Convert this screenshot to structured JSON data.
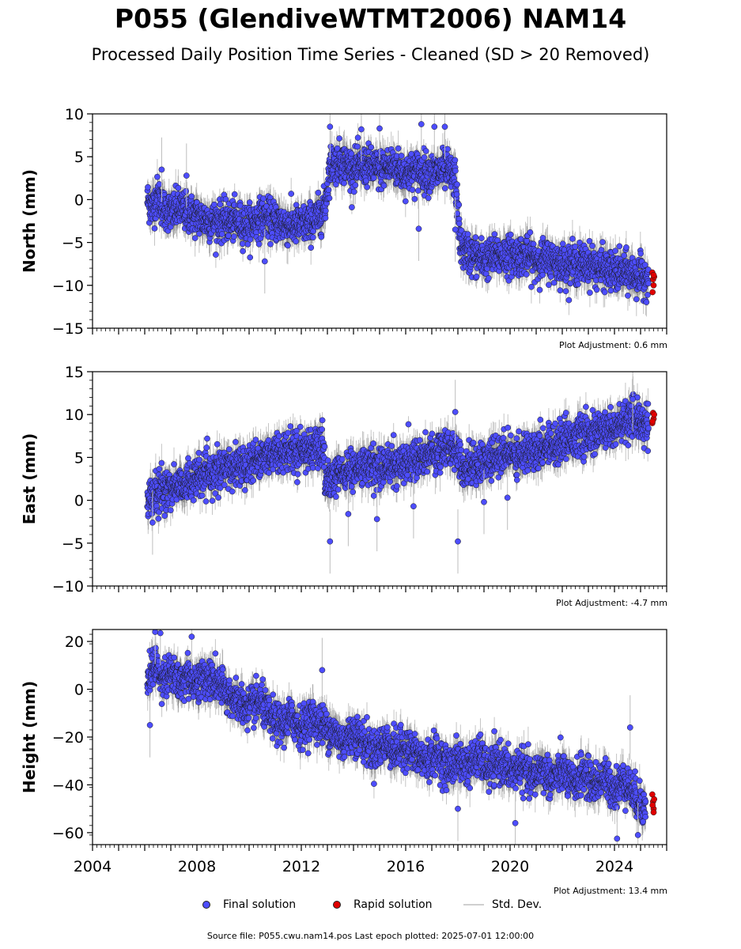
{
  "title": "P055 (GlendiveWTMT2006) NAM14",
  "subtitle": "Processed Daily Position Time Series - Cleaned (SD > 20 Removed)",
  "source_text": "Source file: P055.cwu.nam14.pos  Last epoch plotted: 2025-07-01 12:00:00",
  "legend": {
    "final": "Final solution",
    "rapid": "Rapid solution",
    "std": "Std. Dev."
  },
  "colors": {
    "final": "#4d4dff",
    "rapid": "#e00000",
    "marker_edge": "#1a1a1a",
    "std_dev": "#b4b4b4"
  },
  "chart_data": [
    {
      "type": "scatter",
      "ylabel": "North (mm)",
      "xlim": [
        2004,
        2026
      ],
      "ylim": [
        -15,
        10
      ],
      "yticks": [
        -15,
        -10,
        -5,
        0,
        5,
        10
      ],
      "adjustment": "Plot Adjustment: 0.6 mm",
      "series": [
        {
          "name": "Final solution",
          "points": [
            [
              2006.1,
              0.0
            ],
            [
              2006.3,
              -1.0
            ],
            [
              2006.5,
              0.5
            ],
            [
              2006.7,
              -1.0
            ],
            [
              2007.0,
              -1.5
            ],
            [
              2007.3,
              -1.0
            ],
            [
              2007.6,
              -1.5
            ],
            [
              2008.0,
              -2.0
            ],
            [
              2008.5,
              -2.5
            ],
            [
              2009.0,
              -2.5
            ],
            [
              2009.5,
              -2.5
            ],
            [
              2010.0,
              -3.0
            ],
            [
              2010.5,
              -2.0
            ],
            [
              2011.0,
              -2.5
            ],
            [
              2011.5,
              -3.0
            ],
            [
              2012.0,
              -3.0
            ],
            [
              2012.5,
              -2.5
            ],
            [
              2012.9,
              -1.0
            ],
            [
              2013.1,
              4.0
            ],
            [
              2013.5,
              4.5
            ],
            [
              2014.0,
              3.5
            ],
            [
              2014.5,
              4.0
            ],
            [
              2015.0,
              3.5
            ],
            [
              2015.5,
              4.0
            ],
            [
              2016.0,
              3.0
            ],
            [
              2016.5,
              3.5
            ],
            [
              2017.0,
              3.0
            ],
            [
              2017.5,
              3.5
            ],
            [
              2017.9,
              2.5
            ],
            [
              2018.1,
              -5.5
            ],
            [
              2018.5,
              -6.5
            ],
            [
              2019.0,
              -7.0
            ],
            [
              2019.5,
              -6.5
            ],
            [
              2020.0,
              -6.5
            ],
            [
              2020.5,
              -6.5
            ],
            [
              2021.0,
              -7.0
            ],
            [
              2021.5,
              -7.0
            ],
            [
              2022.0,
              -7.5
            ],
            [
              2022.5,
              -7.5
            ],
            [
              2023.0,
              -7.5
            ],
            [
              2023.5,
              -8.0
            ],
            [
              2024.0,
              -8.5
            ],
            [
              2024.5,
              -8.5
            ],
            [
              2025.0,
              -9.0
            ],
            [
              2025.3,
              -9.0
            ]
          ]
        },
        {
          "name": "Rapid solution",
          "points": [
            [
              2025.45,
              -8.5
            ],
            [
              2025.48,
              -9.3
            ],
            [
              2025.5,
              -10.0
            ],
            [
              2025.52,
              -9.0
            ],
            [
              2025.46,
              -10.8
            ],
            [
              2025.5,
              -8.8
            ]
          ]
        }
      ],
      "outliers": [
        [
          2006.65,
          3.5
        ],
        [
          2007.6,
          2.8
        ],
        [
          2010.6,
          -7.2
        ],
        [
          2013.1,
          8.5
        ],
        [
          2014.3,
          8.2
        ],
        [
          2015.0,
          8.3
        ],
        [
          2016.6,
          8.8
        ],
        [
          2017.1,
          8.5
        ],
        [
          2017.5,
          8.5
        ],
        [
          2017.9,
          -3.5
        ],
        [
          2016.5,
          -3.4
        ]
      ]
    },
    {
      "type": "scatter",
      "ylabel": "East (mm)",
      "xlim": [
        2004,
        2026
      ],
      "ylim": [
        -10,
        15
      ],
      "yticks": [
        -10,
        -5,
        0,
        5,
        10,
        15
      ],
      "adjustment": "Plot Adjustment: -4.7 mm",
      "series": [
        {
          "name": "Final solution",
          "points": [
            [
              2006.1,
              0.0
            ],
            [
              2006.5,
              0.8
            ],
            [
              2007.0,
              1.5
            ],
            [
              2007.5,
              2.0
            ],
            [
              2008.0,
              2.5
            ],
            [
              2008.5,
              3.0
            ],
            [
              2009.0,
              3.5
            ],
            [
              2009.5,
              4.0
            ],
            [
              2010.0,
              4.5
            ],
            [
              2010.5,
              5.0
            ],
            [
              2011.0,
              5.5
            ],
            [
              2011.5,
              5.8
            ],
            [
              2012.0,
              6.0
            ],
            [
              2012.5,
              6.0
            ],
            [
              2012.9,
              5.5
            ],
            [
              2013.0,
              2.0
            ],
            [
              2013.5,
              3.0
            ],
            [
              2014.0,
              3.5
            ],
            [
              2014.5,
              4.0
            ],
            [
              2015.0,
              4.0
            ],
            [
              2015.5,
              4.0
            ],
            [
              2016.0,
              4.5
            ],
            [
              2016.5,
              5.0
            ],
            [
              2017.0,
              5.5
            ],
            [
              2017.5,
              6.0
            ],
            [
              2018.0,
              6.0
            ],
            [
              2018.2,
              3.5
            ],
            [
              2018.5,
              4.0
            ],
            [
              2019.0,
              4.5
            ],
            [
              2019.5,
              5.0
            ],
            [
              2020.0,
              5.5
            ],
            [
              2020.5,
              5.5
            ],
            [
              2021.0,
              6.0
            ],
            [
              2021.5,
              6.5
            ],
            [
              2022.0,
              7.0
            ],
            [
              2022.5,
              7.5
            ],
            [
              2023.0,
              7.5
            ],
            [
              2023.5,
              8.0
            ],
            [
              2024.0,
              8.5
            ],
            [
              2024.5,
              9.0
            ],
            [
              2025.0,
              9.5
            ],
            [
              2025.3,
              9.0
            ]
          ]
        },
        {
          "name": "Rapid solution",
          "points": [
            [
              2025.45,
              9.0
            ],
            [
              2025.48,
              10.2
            ],
            [
              2025.5,
              9.5
            ],
            [
              2025.52,
              10.0
            ],
            [
              2025.46,
              9.2
            ]
          ]
        }
      ],
      "outliers": [
        [
          2006.3,
          -2.6
        ],
        [
          2013.1,
          -4.8
        ],
        [
          2014.9,
          -2.2
        ],
        [
          2017.9,
          10.3
        ],
        [
          2018.0,
          -4.8
        ],
        [
          2013.8,
          -1.6
        ],
        [
          2019.0,
          -0.2
        ],
        [
          2019.9,
          0.3
        ],
        [
          2016.3,
          -0.7
        ],
        [
          2024.7,
          11.8
        ]
      ]
    },
    {
      "type": "scatter",
      "ylabel": "Height (mm)",
      "xlabel": "",
      "xlim": [
        2004,
        2026
      ],
      "ylim": [
        -65,
        25
      ],
      "yticks": [
        -60,
        -40,
        -20,
        0,
        20
      ],
      "xticks": [
        2004,
        2008,
        2012,
        2016,
        2020,
        2024
      ],
      "adjustment": "Plot Adjustment: 13.4 mm",
      "series": [
        {
          "name": "Final solution",
          "points": [
            [
              2006.1,
              5.0
            ],
            [
              2006.4,
              10.0
            ],
            [
              2006.7,
              5.0
            ],
            [
              2007.0,
              7.0
            ],
            [
              2007.3,
              2.0
            ],
            [
              2007.6,
              6.0
            ],
            [
              2008.0,
              3.0
            ],
            [
              2008.4,
              5.0
            ],
            [
              2008.8,
              2.0
            ],
            [
              2009.2,
              -2.0
            ],
            [
              2009.6,
              -6.0
            ],
            [
              2010.0,
              -8.0
            ],
            [
              2010.4,
              -5.0
            ],
            [
              2010.8,
              -12.0
            ],
            [
              2011.2,
              -15.0
            ],
            [
              2011.6,
              -12.0
            ],
            [
              2012.0,
              -16.0
            ],
            [
              2012.4,
              -12.0
            ],
            [
              2012.8,
              -15.0
            ],
            [
              2013.2,
              -18.0
            ],
            [
              2013.6,
              -22.0
            ],
            [
              2014.0,
              -18.0
            ],
            [
              2014.4,
              -22.0
            ],
            [
              2014.8,
              -26.0
            ],
            [
              2015.2,
              -22.0
            ],
            [
              2015.6,
              -26.0
            ],
            [
              2016.0,
              -24.0
            ],
            [
              2016.4,
              -28.0
            ],
            [
              2016.8,
              -30.0
            ],
            [
              2017.2,
              -27.0
            ],
            [
              2017.6,
              -33.0
            ],
            [
              2018.0,
              -30.0
            ],
            [
              2018.4,
              -32.0
            ],
            [
              2018.8,
              -28.0
            ],
            [
              2019.2,
              -34.0
            ],
            [
              2019.6,
              -30.0
            ],
            [
              2020.0,
              -35.0
            ],
            [
              2020.4,
              -32.0
            ],
            [
              2020.8,
              -38.0
            ],
            [
              2021.2,
              -33.0
            ],
            [
              2021.6,
              -38.0
            ],
            [
              2022.0,
              -34.0
            ],
            [
              2022.4,
              -40.0
            ],
            [
              2022.8,
              -35.0
            ],
            [
              2023.2,
              -40.0
            ],
            [
              2023.6,
              -37.0
            ],
            [
              2024.0,
              -42.0
            ],
            [
              2024.4,
              -38.0
            ],
            [
              2024.8,
              -45.0
            ],
            [
              2025.2,
              -50.0
            ]
          ]
        },
        {
          "name": "Rapid solution",
          "points": [
            [
              2025.45,
              -44.0
            ],
            [
              2025.48,
              -47.0
            ],
            [
              2025.5,
              -50.0
            ],
            [
              2025.52,
              -46.0
            ],
            [
              2025.46,
              -48.5
            ],
            [
              2025.5,
              -51.5
            ]
          ]
        }
      ],
      "outliers": [
        [
          2006.4,
          24.0
        ],
        [
          2006.6,
          23.5
        ],
        [
          2007.8,
          22.0
        ],
        [
          2018.0,
          -50.0
        ],
        [
          2020.2,
          -56.0
        ],
        [
          2024.1,
          -62.5
        ],
        [
          2024.6,
          -16.0
        ],
        [
          2024.9,
          -61.0
        ],
        [
          2006.2,
          -15.0
        ],
        [
          2012.8,
          8.0
        ]
      ]
    }
  ]
}
